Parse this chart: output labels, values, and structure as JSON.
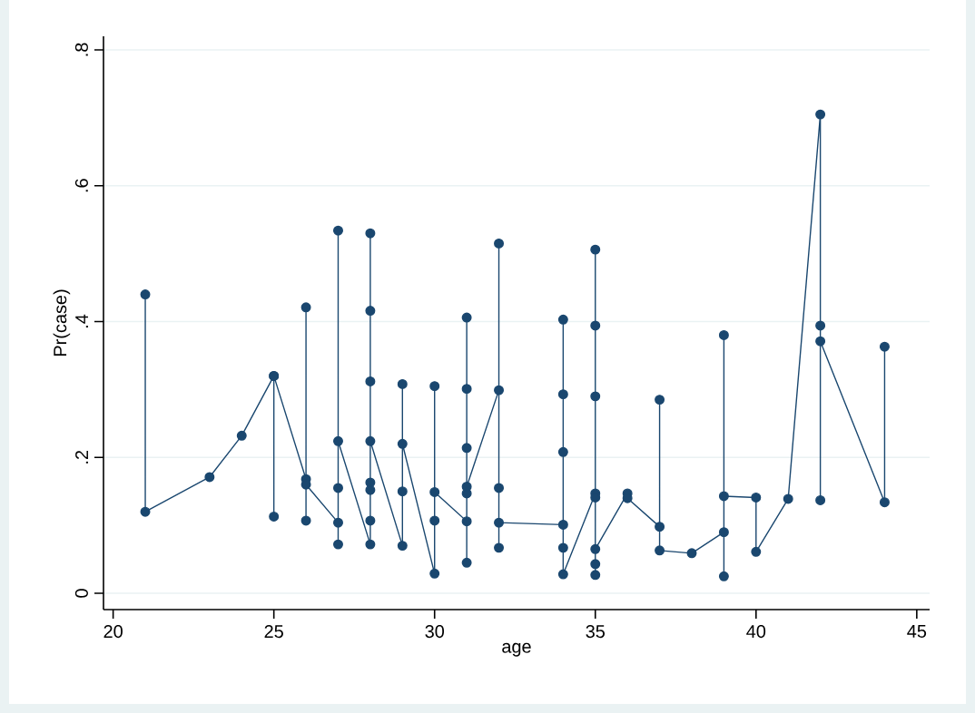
{
  "chart_data": {
    "type": "line",
    "xlabel": "age",
    "ylabel": "Pr(case)",
    "x": [
      21,
      21,
      23,
      24,
      25,
      25,
      25,
      26,
      26,
      26,
      26,
      27,
      27,
      27,
      27,
      27,
      28,
      28,
      28,
      28,
      28,
      28,
      28,
      28,
      29,
      29,
      29,
      29,
      30,
      30,
      30,
      30,
      31,
      31,
      31,
      31,
      31,
      31,
      31,
      32,
      32,
      32,
      32,
      32,
      34,
      34,
      34,
      34,
      34,
      34,
      35,
      35,
      35,
      35,
      35,
      35,
      35,
      35,
      36,
      36,
      37,
      37,
      37,
      38,
      39,
      39,
      39,
      39,
      40,
      40,
      41,
      42,
      42,
      42,
      42,
      44,
      44
    ],
    "series": [
      {
        "color": "#1a476f",
        "values": [
          0.44,
          0.12,
          0.171,
          0.232,
          0.32,
          0.113,
          0.32,
          0.168,
          0.421,
          0.107,
          0.16,
          0.104,
          0.534,
          0.072,
          0.155,
          0.224,
          0.072,
          0.53,
          0.416,
          0.312,
          0.163,
          0.152,
          0.107,
          0.224,
          0.07,
          0.308,
          0.15,
          0.22,
          0.029,
          0.305,
          0.107,
          0.149,
          0.106,
          0.406,
          0.301,
          0.214,
          0.147,
          0.045,
          0.157,
          0.299,
          0.515,
          0.155,
          0.067,
          0.104,
          0.101,
          0.403,
          0.293,
          0.208,
          0.067,
          0.028,
          0.147,
          0.506,
          0.394,
          0.29,
          0.141,
          0.043,
          0.027,
          0.065,
          0.147,
          0.14,
          0.098,
          0.285,
          0.063,
          0.059,
          0.09,
          0.38,
          0.025,
          0.143,
          0.141,
          0.061,
          0.139,
          0.705,
          0.394,
          0.137,
          0.371,
          0.134,
          0.363
        ]
      }
    ],
    "xlim": [
      19.7,
      45.4
    ],
    "xticks": [
      20,
      25,
      30,
      35,
      40,
      45
    ],
    "ylim": [
      -0.024,
      0.82
    ],
    "yticks": [
      {
        "value": 0,
        "label": "0"
      },
      {
        "value": 0.2,
        "label": ".2"
      },
      {
        "value": 0.4,
        "label": ".4"
      },
      {
        "value": 0.6,
        "label": ".6"
      },
      {
        "value": 0.8,
        "label": ".8"
      }
    ],
    "grid": "y",
    "marker": "circle",
    "line_style": "solid"
  }
}
